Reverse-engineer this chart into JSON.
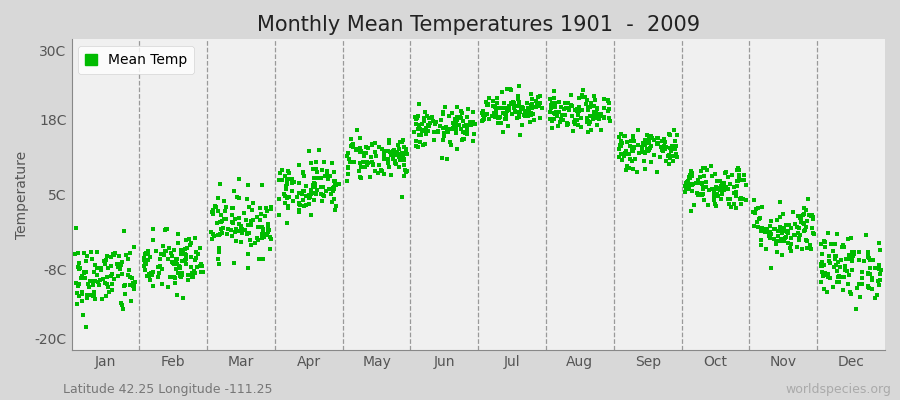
{
  "title": "Monthly Mean Temperatures 1901  -  2009",
  "ylabel": "Temperature",
  "subtitle": "Latitude 42.25 Longitude -111.25",
  "watermark": "worldspecies.org",
  "legend_label": "Mean Temp",
  "dot_color": "#00bb00",
  "fig_bg_color": "#d8d8d8",
  "plot_bg_color": "#f0f0f0",
  "yticks": [
    -20,
    -8,
    5,
    18,
    30
  ],
  "ytick_labels": [
    "-20C",
    "-8C",
    "5C",
    "18C",
    "30C"
  ],
  "months": [
    "Jan",
    "Feb",
    "Mar",
    "Apr",
    "May",
    "Jun",
    "Jul",
    "Aug",
    "Sep",
    "Oct",
    "Nov",
    "Dec"
  ],
  "month_means": [
    -9.5,
    -7.0,
    0.0,
    6.5,
    11.5,
    16.5,
    20.0,
    19.0,
    13.0,
    6.5,
    -1.0,
    -7.5
  ],
  "month_stds": [
    3.2,
    2.8,
    2.8,
    2.4,
    2.0,
    1.8,
    1.6,
    1.6,
    1.8,
    2.0,
    2.4,
    2.8
  ],
  "n_years": 109,
  "seed": 42,
  "marker_size": 5,
  "title_fontsize": 15,
  "axis_fontsize": 10,
  "tick_fontsize": 10,
  "subtitle_fontsize": 9,
  "watermark_fontsize": 9
}
